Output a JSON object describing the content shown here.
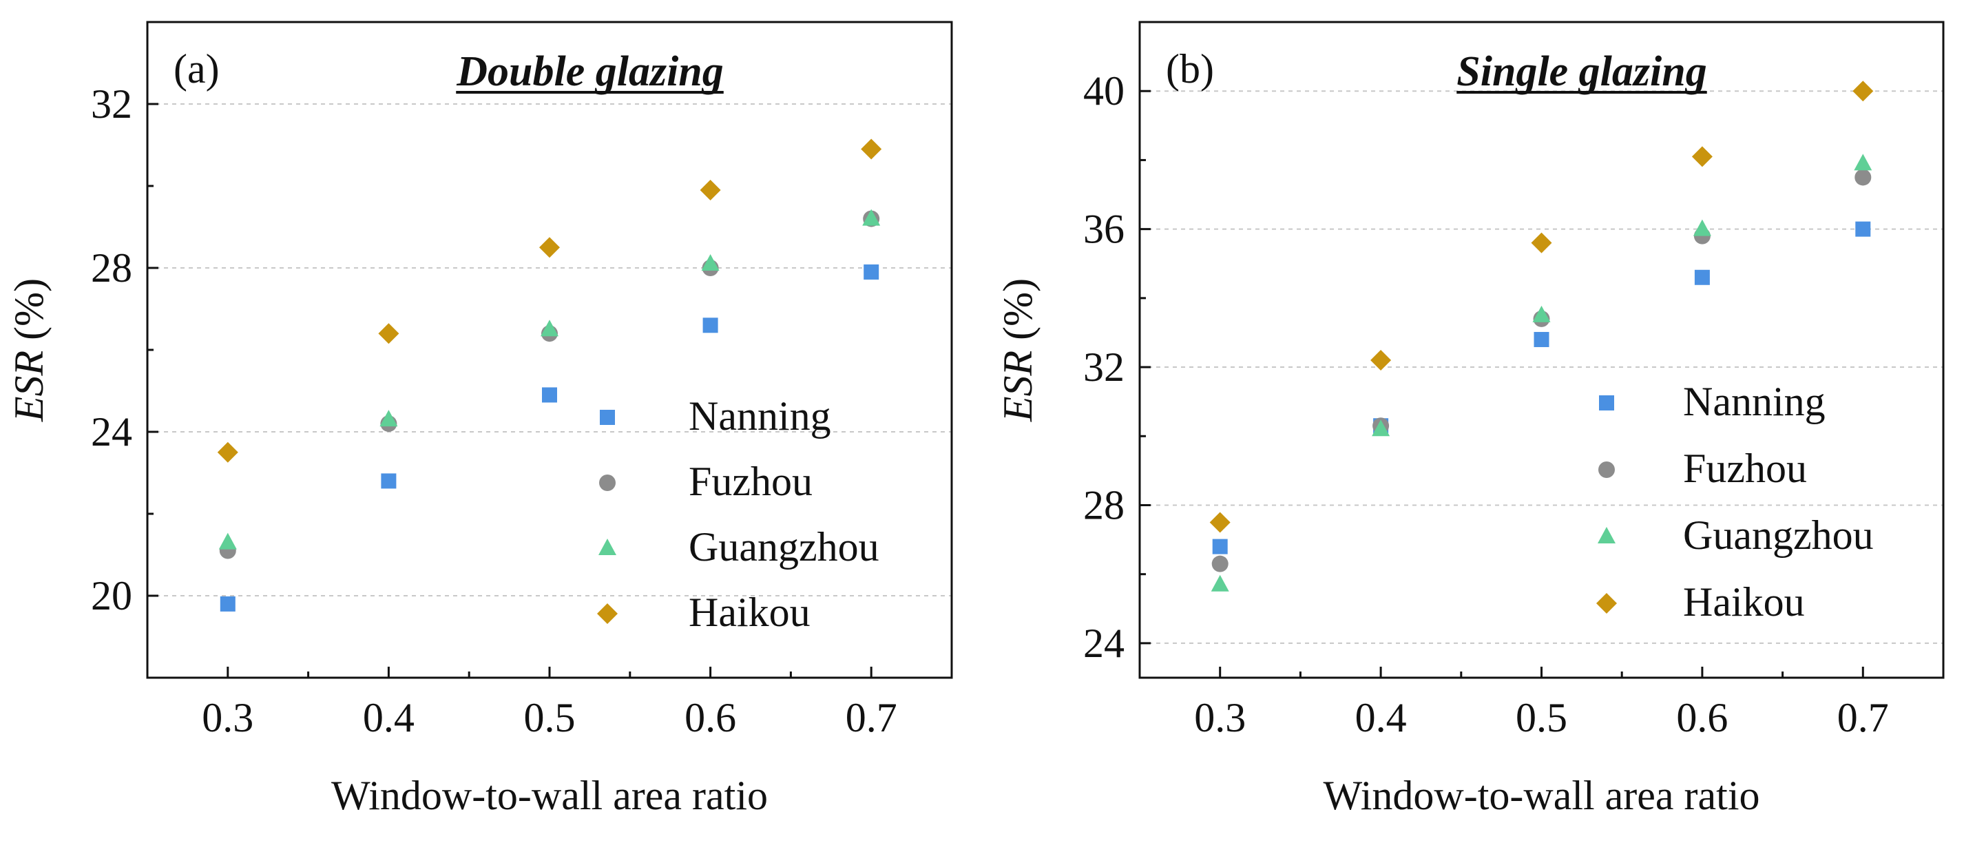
{
  "figure": {
    "colors": {
      "Nanning": "#4a90e2",
      "Fuzhou": "#8c8c8c",
      "Guangzhou": "#5fcf96",
      "Haikou": "#c9940e"
    },
    "markers": {
      "Nanning": "square",
      "Fuzhou": "circle",
      "Guangzhou": "triangle",
      "Haikou": "diamond"
    }
  },
  "chart_data": [
    {
      "type": "scatter",
      "panel_label": "(a)",
      "title": "Double glazing",
      "xlabel": "Window-to-wall area ratio",
      "ylabel_italic": "ESR",
      "ylabel_rest": " (%)",
      "x": [
        0.3,
        0.4,
        0.5,
        0.6,
        0.7
      ],
      "x_ticks": [
        "0.3",
        "0.4",
        "0.5",
        "0.6",
        "0.7"
      ],
      "xlim": [
        0.25,
        0.75
      ],
      "y_ticks": [
        20,
        24,
        28,
        32
      ],
      "ylim": [
        18,
        34
      ],
      "legend_position": "bottom-right",
      "series": [
        {
          "name": "Nanning",
          "values": [
            19.8,
            22.8,
            24.9,
            26.6,
            27.9
          ]
        },
        {
          "name": "Fuzhou",
          "values": [
            21.1,
            24.2,
            26.4,
            28.0,
            29.2
          ]
        },
        {
          "name": "Guangzhou",
          "values": [
            21.3,
            24.3,
            26.5,
            28.1,
            29.2
          ]
        },
        {
          "name": "Haikou",
          "values": [
            23.5,
            26.4,
            28.5,
            29.9,
            30.9
          ]
        }
      ]
    },
    {
      "type": "scatter",
      "panel_label": "(b)",
      "title": "Single glazing",
      "xlabel": "Window-to-wall area ratio",
      "ylabel_italic": "ESR",
      "ylabel_rest": " (%)",
      "x": [
        0.3,
        0.4,
        0.5,
        0.6,
        0.7
      ],
      "x_ticks": [
        "0.3",
        "0.4",
        "0.5",
        "0.6",
        "0.7"
      ],
      "xlim": [
        0.25,
        0.75
      ],
      "y_ticks": [
        24,
        28,
        32,
        36,
        40
      ],
      "ylim": [
        23,
        42
      ],
      "legend_position": "bottom-right",
      "series": [
        {
          "name": "Nanning",
          "values": [
            26.8,
            30.3,
            32.8,
            34.6,
            36.0
          ]
        },
        {
          "name": "Fuzhou",
          "values": [
            26.3,
            30.3,
            33.4,
            35.8,
            37.5
          ]
        },
        {
          "name": "Guangzhou",
          "values": [
            25.7,
            30.2,
            33.5,
            36.0,
            37.9
          ]
        },
        {
          "name": "Haikou",
          "values": [
            27.5,
            32.2,
            35.6,
            38.1,
            40.0
          ]
        }
      ]
    }
  ]
}
